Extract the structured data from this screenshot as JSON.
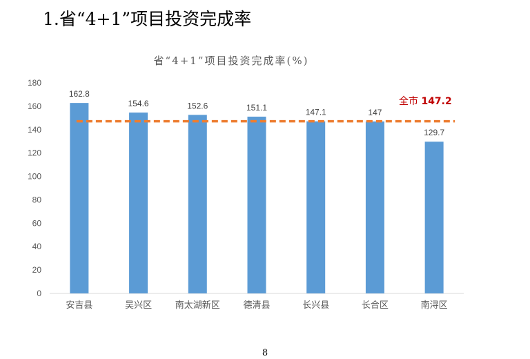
{
  "page": {
    "heading": "1.省“4+1”项目投资完成率",
    "page_number": "8"
  },
  "colors": {
    "bar": "#5B9BD5",
    "reference_line": "#ED7D31",
    "reference_label": "#C00000",
    "axis_text": "#595959",
    "grid": "#D9D9D9"
  },
  "chart_data": {
    "type": "bar",
    "title": "省“4+1”项目投资完成率(%)",
    "categories": [
      "安吉县",
      "吴兴区",
      "南太湖新区",
      "德清县",
      "长兴县",
      "长合区",
      "南浔区"
    ],
    "values": [
      162.8,
      154.6,
      152.6,
      151.1,
      147.1,
      147,
      129.7
    ],
    "data_labels": [
      "162.8",
      "154.6",
      "152.6",
      "151.1",
      "147.1",
      "147",
      "129.7"
    ],
    "y_ticks": [
      0,
      20,
      40,
      60,
      80,
      100,
      120,
      140,
      160,
      180
    ],
    "ylim": [
      0,
      180
    ],
    "grid": false,
    "reference_line": {
      "value": 147.2,
      "label_prefix": "全市",
      "label_value": "147.2",
      "style": "dashed"
    }
  }
}
